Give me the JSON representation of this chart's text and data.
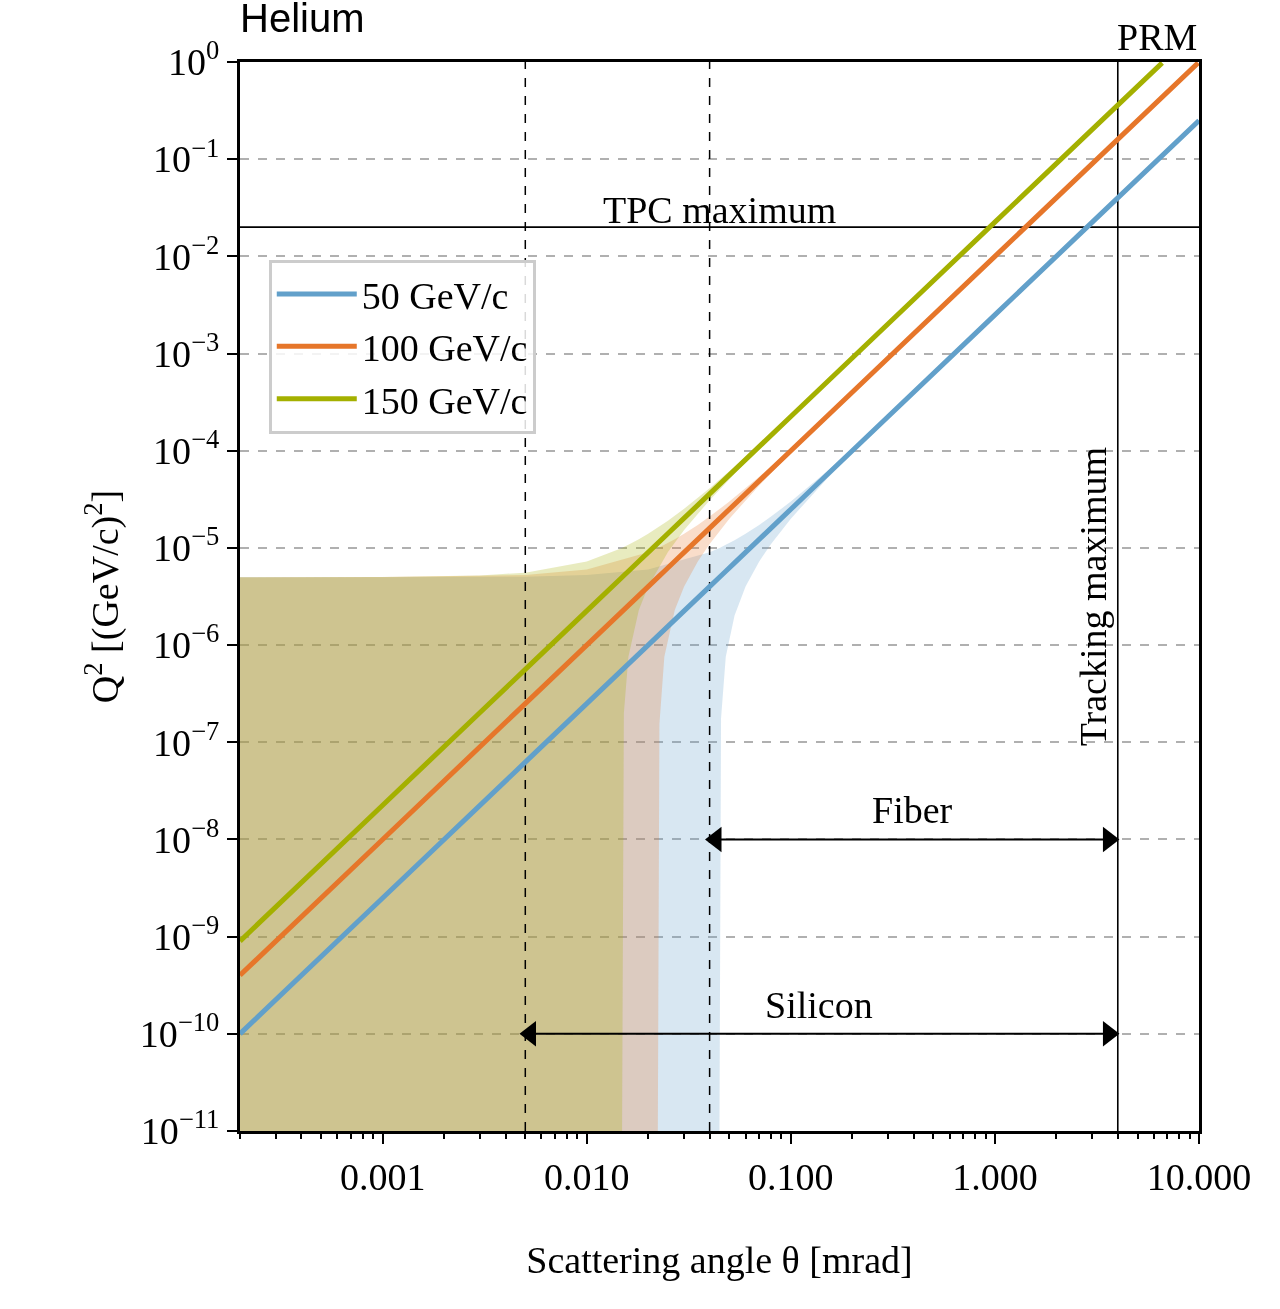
{
  "chart_data": {
    "type": "line",
    "title": "Helium",
    "xlabel": "Scattering angle θ [mrad]",
    "ylabel": "Q$^{2}$ [(GeV/c)$^{2}$]",
    "log": "xy",
    "xlim": [
      0.0002,
      10
    ],
    "ylim": [
      1e-11,
      1
    ],
    "xticks": [
      {
        "value": 0.001,
        "label": "0.001"
      },
      {
        "value": 0.01,
        "label": "0.010"
      },
      {
        "value": 0.1,
        "label": "0.100"
      },
      {
        "value": 1,
        "label": "1.000"
      },
      {
        "value": 10,
        "label": "10.000"
      }
    ],
    "yticks": [
      {
        "value": 1e-11,
        "label": "10$^{−11}$"
      },
      {
        "value": 1e-10,
        "label": "10$^{−10}$"
      },
      {
        "value": 1e-09,
        "label": "10$^{−9}$"
      },
      {
        "value": 1e-08,
        "label": "10$^{−8}$"
      },
      {
        "value": 1e-07,
        "label": "10$^{−7}$"
      },
      {
        "value": 1e-06,
        "label": "10$^{−6}$"
      },
      {
        "value": 1e-05,
        "label": "10$^{−5}$"
      },
      {
        "value": 0.0001,
        "label": "10$^{−4}$"
      },
      {
        "value": 0.001,
        "label": "10$^{−3}$"
      },
      {
        "value": 0.01,
        "label": "10$^{−2}$"
      },
      {
        "value": 0.1,
        "label": "10$^{−1}$"
      },
      {
        "value": 1,
        "label": "10$^{0}$"
      }
    ],
    "grid": "y",
    "legend": "top left",
    "marker": "none",
    "line_style": "solid",
    "series": [
      {
        "name": "50 GeV/c",
        "color": "#62a0ca",
        "x": [
          0.0002,
          0.001,
          0.005,
          0.01,
          0.02,
          0.04,
          0.0447,
          0.0455,
          0.048,
          0.053,
          0.06,
          0.07,
          0.08,
          0.1,
          0.15,
          0.2,
          0.3,
          1,
          3,
          10
        ],
        "values": [
          1e-10,
          2.5e-09,
          6.25e-08,
          2.5e-07,
          1e-06,
          4e-06,
          4.995e-06,
          5.176e-06,
          5.76e-06,
          7.02e-06,
          9e-06,
          1.225e-05,
          1.6e-05,
          2.5e-05,
          5.625e-05,
          0.0001,
          0.000225,
          0.0025,
          0.0225,
          0.25
        ],
        "upper": [
          5e-06,
          5.003e-06,
          5.063e-06,
          5.25e-06,
          6e-06,
          9e-06,
          9.995e-06,
          1.018e-05,
          1.076e-05,
          1.202e-05,
          1.4e-05,
          1.725e-05,
          2.1e-05,
          3e-05,
          6.125e-05,
          0.000105,
          0.00023,
          0.002505,
          0.0225,
          0.25
        ],
        "lower": [
          1e-11,
          1e-11,
          1e-11,
          1e-11,
          1e-11,
          1e-11,
          1e-11,
          1.76e-07,
          7.6e-07,
          2.02e-06,
          4e-06,
          7.25e-06,
          1.1e-05,
          2e-05,
          5.125e-05,
          9.5e-05,
          0.00022,
          0.002495,
          0.0225,
          0.25
        ]
      },
      {
        "name": "100 GeV/c",
        "color": "#e6762a",
        "x": [
          0.0002,
          0.001,
          0.005,
          0.01,
          0.02,
          0.0223,
          0.0227,
          0.024,
          0.027,
          0.03,
          0.035,
          0.04,
          0.05,
          0.07,
          0.1,
          0.3,
          1,
          3,
          9.9
        ],
        "values": [
          4e-10,
          1e-08,
          2.5e-07,
          1e-06,
          4e-06,
          4.973e-06,
          5.153e-06,
          5.76e-06,
          7.29e-06,
          9e-06,
          1.225e-05,
          1.6e-05,
          2.5e-05,
          4.9e-05,
          0.0001,
          0.0009,
          0.01,
          0.09,
          0.98
        ],
        "upper": [
          5e-06,
          5.01e-06,
          5.25e-06,
          6e-06,
          9e-06,
          9.973e-06,
          1.015e-05,
          1.076e-05,
          1.229e-05,
          1.4e-05,
          1.725e-05,
          2.1e-05,
          3e-05,
          5.4e-05,
          0.000105,
          0.000905,
          0.01,
          0.09,
          0.98
        ],
        "lower": [
          1e-11,
          1e-11,
          1e-11,
          1e-11,
          1e-11,
          1e-11,
          1.53e-07,
          7.6e-07,
          2.29e-06,
          4e-06,
          7.25e-06,
          1.1e-05,
          2e-05,
          4.4e-05,
          9.5e-05,
          0.000895,
          0.01,
          0.09,
          0.98
        ]
      },
      {
        "name": "Fiber",
        "color": "#000000",
        "marker": "triangle",
        "x": [
          0.043,
          3.6
        ],
        "values": [
          1e-08,
          1e-08
        ]
      },
      {
        "name": "Silicon",
        "color": "#000000",
        "marker": "triangle",
        "x": [
          0.0053,
          3.6
        ],
        "values": [
          1e-10,
          1e-10
        ]
      },
      {
        "name": "150 GeV/c",
        "color": "#a4b000",
        "x": [
          0.0002,
          0.001,
          0.003,
          0.005,
          0.01,
          0.0149,
          0.0152,
          0.016,
          0.018,
          0.02,
          0.025,
          0.03,
          0.04,
          0.06,
          0.1,
          0.3,
          1,
          3,
          6.6
        ],
        "values": [
          9e-10,
          2.25e-08,
          2.025e-07,
          5.625e-07,
          2.25e-06,
          4.995e-06,
          5.198e-06,
          5.76e-06,
          7.29e-06,
          9e-06,
          1.406e-05,
          2.025e-05,
          3.6e-05,
          8.1e-05,
          0.000225,
          0.002025,
          0.0225,
          0.2025,
          0.98
        ],
        "upper": [
          5e-06,
          5.023e-06,
          5.203e-06,
          5.563e-06,
          7.25e-06,
          9.995e-06,
          1.02e-05,
          1.076e-05,
          1.229e-05,
          1.4e-05,
          1.906e-05,
          2.525e-05,
          4.1e-05,
          8.6e-05,
          0.00023,
          0.00203,
          0.0225,
          0.2025,
          0.98
        ],
        "lower": [
          1e-11,
          1e-11,
          1e-11,
          1e-11,
          1e-11,
          1e-11,
          1.98e-07,
          7.6e-07,
          2.29e-06,
          4e-06,
          9.06e-06,
          1.525e-05,
          3.1e-05,
          7.6e-05,
          0.00022,
          0.00202,
          0.0225,
          0.2025,
          0.98
        ]
      }
    ],
    "ref_lines": [
      {
        "axis": "x",
        "value": 0.005,
        "color": "#000000",
        "line_style": "dashed"
      },
      {
        "axis": "x",
        "value": 0.04,
        "color": "#000000",
        "line_style": "dashed"
      },
      {
        "axis": "y",
        "value": 0.02,
        "label": "TPC maximum",
        "color": "#000000",
        "line_style": "solid"
      },
      {
        "axis": "x",
        "value": 4,
        "label": "Tracking maximum",
        "color": "#000000",
        "line_style": "solid"
      }
    ],
    "annotations": [
      "PRM"
    ]
  }
}
